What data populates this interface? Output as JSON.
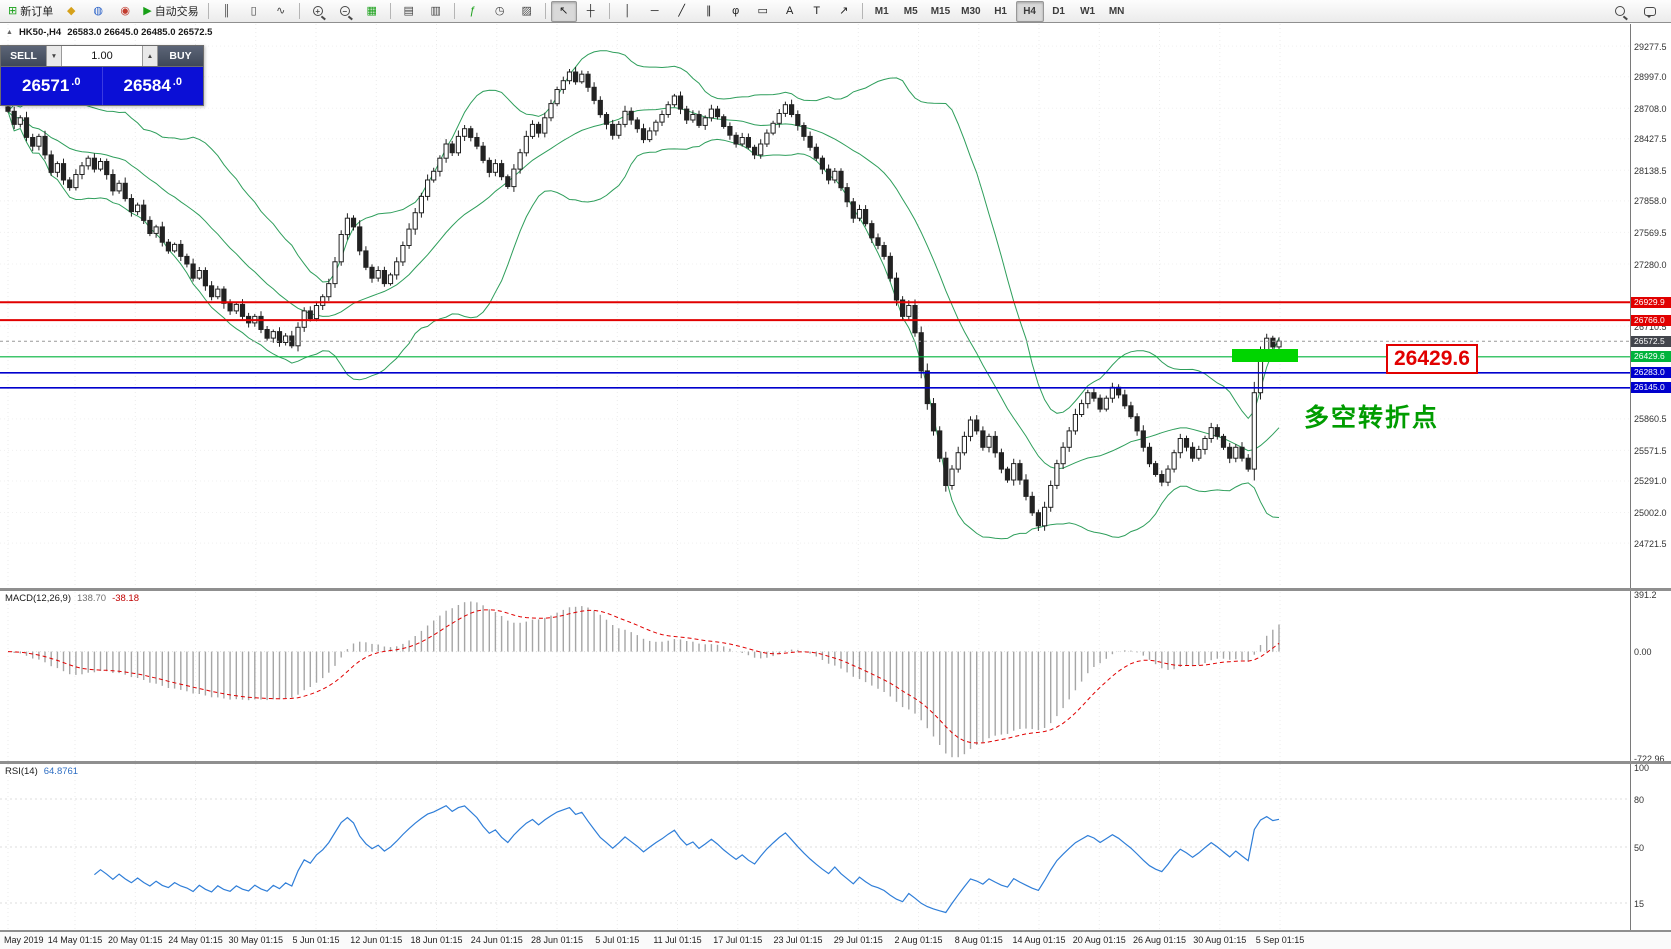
{
  "toolbar": {
    "groups": [
      {
        "items": [
          {
            "name": "new-order-button",
            "glyph": "⊞",
            "color": "#18a018",
            "label": "新订单"
          },
          {
            "name": "charts-bar-icon-button",
            "glyph": "◆",
            "color": "#d6a11a"
          },
          {
            "name": "market-watch-icon-button",
            "glyph": "◍",
            "color": "#2b62c8"
          },
          {
            "name": "data-window-icon-button",
            "glyph": "◉",
            "color": "#c23b2e"
          },
          {
            "name": "autotrading-button",
            "glyph": "▶",
            "color": "#18a018",
            "label": "自动交易"
          }
        ]
      },
      {
        "items": [
          {
            "name": "bar-chart-type-button",
            "glyph": "║",
            "color": "#444444"
          },
          {
            "name": "candlestick-type-button",
            "glyph": "▯",
            "color": "#444444"
          },
          {
            "name": "line-chart-type-button",
            "glyph": "∿",
            "color": "#444444"
          }
        ]
      },
      {
        "items": [
          {
            "name": "zoom-in-button",
            "mag": "+"
          },
          {
            "name": "zoom-out-button",
            "mag": "−"
          },
          {
            "name": "chart-grid-icon-button",
            "glyph": "▦",
            "color": "#18a018"
          }
        ]
      },
      {
        "items": [
          {
            "name": "tile-windows-icon-button",
            "glyph": "▤",
            "color": "#444444"
          },
          {
            "name": "cascade-windows-icon-button",
            "glyph": "▥",
            "color": "#444444"
          }
        ]
      },
      {
        "items": [
          {
            "name": "indicators-icon-button",
            "glyph": "ƒ",
            "color": "#18a018"
          },
          {
            "name": "periods-icon-button",
            "glyph": "◷",
            "color": "#444444"
          },
          {
            "name": "templates-icon-button",
            "glyph": "▨",
            "color": "#444444"
          }
        ]
      },
      {
        "items": [
          {
            "name": "cursor-tool-button",
            "glyph": "↖",
            "color": "#222222",
            "active": true
          },
          {
            "name": "crosshair-tool-button",
            "glyph": "┼",
            "color": "#222222"
          }
        ]
      },
      {
        "items": [
          {
            "name": "vertical-line-tool-button",
            "glyph": "│",
            "color": "#222222"
          },
          {
            "name": "horizontal-line-tool-button",
            "glyph": "─",
            "color": "#222222"
          },
          {
            "name": "trendline-tool-button",
            "glyph": "╱",
            "color": "#222222"
          },
          {
            "name": "channel-tool-button",
            "glyph": "∥",
            "color": "#222222"
          },
          {
            "name": "fibonacci-tool-button",
            "glyph": "φ",
            "color": "#222222"
          },
          {
            "name": "shapes-tool-button",
            "glyph": "▭",
            "color": "#222222"
          },
          {
            "name": "text-tool-button",
            "glyph": "A",
            "color": "#222222"
          },
          {
            "name": "label-tool-button",
            "glyph": "T",
            "color": "#222222"
          },
          {
            "name": "arrows-tool-button",
            "glyph": "↗",
            "color": "#222222"
          }
        ]
      }
    ],
    "timeframes": {
      "items": [
        "M1",
        "M5",
        "M15",
        "M30",
        "H1",
        "H4",
        "D1",
        "W1",
        "MN"
      ],
      "active": "H4"
    },
    "right_items": [
      {
        "name": "search-icon-button",
        "mag": ""
      },
      {
        "name": "chat-icon-button",
        "bubble": true
      }
    ]
  },
  "chart": {
    "info": {
      "icon_glyph": "▲",
      "symbol_period": "HK50-,H4",
      "ohlc": "26583.0 26645.0 26485.0 26572.5"
    },
    "order_panel": {
      "sell_label": "SELL",
      "buy_label": "BUY",
      "volume": "1.00",
      "step_down_glyph": "▼",
      "step_up_glyph": "▲",
      "sell_main": "26571",
      "sell_frac": ".0",
      "buy_main": "26584",
      "buy_frac": ".0"
    },
    "annotations": {
      "turning_point": "多空转折点",
      "callout": "26429.6"
    },
    "hlines": [
      {
        "price": 26929.9,
        "color": "#e10000",
        "lw": 2.0,
        "badge": "26929.9"
      },
      {
        "price": 26766.0,
        "color": "#e10000",
        "lw": 2.0,
        "badge": "26766.0"
      },
      {
        "price": 26429.6,
        "color": "#00b33c",
        "lw": 1.2,
        "badge": "26429.6"
      },
      {
        "price": 26283.0,
        "color": "#0000cd",
        "lw": 1.6,
        "badge": "26283.0"
      },
      {
        "price": 26145.0,
        "color": "#0000cd",
        "lw": 1.6,
        "badge": "26145.0"
      }
    ],
    "current_price": {
      "price": 26572.5,
      "badge": "26572.5",
      "color": "#43464d"
    },
    "price_axis_labels": [
      "29277.5",
      "28997.0",
      "28708.0",
      "28427.5",
      "28138.5",
      "27858.0",
      "27569.5",
      "27280.0",
      "26710.5",
      "25860.5",
      "25571.5",
      "25291.0",
      "25002.0",
      "24721.5"
    ]
  },
  "chart_data": {
    "type": "candlestick",
    "title": "HK50-,H4",
    "y_range": [
      24310,
      29480
    ],
    "closes": [
      28680,
      28560,
      28620,
      28440,
      28360,
      28450,
      28280,
      28120,
      28200,
      28050,
      27980,
      28100,
      28180,
      28250,
      28150,
      28220,
      28100,
      27950,
      28020,
      27880,
      27760,
      27820,
      27680,
      27560,
      27620,
      27480,
      27400,
      27460,
      27350,
      27280,
      27150,
      27220,
      27080,
      26980,
      27050,
      26920,
      26850,
      26910,
      26800,
      26740,
      26800,
      26680,
      26600,
      26660,
      26560,
      26620,
      26530,
      26700,
      26850,
      26780,
      26900,
      26980,
      27100,
      27300,
      27550,
      27700,
      27620,
      27400,
      27250,
      27150,
      27220,
      27100,
      27180,
      27300,
      27450,
      27600,
      27750,
      27900,
      28050,
      28130,
      28250,
      28380,
      28300,
      28450,
      28520,
      28440,
      28360,
      28230,
      28120,
      28200,
      28080,
      27990,
      28150,
      28300,
      28450,
      28560,
      28480,
      28620,
      28750,
      28880,
      28960,
      29040,
      28950,
      29020,
      28900,
      28780,
      28650,
      28560,
      28460,
      28560,
      28680,
      28600,
      28520,
      28420,
      28500,
      28580,
      28650,
      28740,
      28820,
      28700,
      28600,
      28650,
      28550,
      28620,
      28700,
      28630,
      28540,
      28460,
      28380,
      28440,
      28350,
      28280,
      28380,
      28480,
      28570,
      28660,
      28740,
      28650,
      28550,
      28450,
      28350,
      28250,
      28150,
      28050,
      28130,
      27980,
      27850,
      27700,
      27780,
      27650,
      27520,
      27450,
      27350,
      27150,
      26950,
      26800,
      26900,
      26650,
      26300,
      26000,
      25750,
      25500,
      25250,
      25400,
      25550,
      25700,
      25850,
      25750,
      25600,
      25700,
      25550,
      25400,
      25300,
      25450,
      25300,
      25150,
      25000,
      24880,
      25050,
      25250,
      25450,
      25600,
      25750,
      25900,
      26000,
      26100,
      26050,
      25950,
      26050,
      26150,
      26080,
      25980,
      25880,
      25750,
      25600,
      25450,
      25350,
      25280,
      25400,
      25550,
      25680,
      25600,
      25500,
      25580,
      25680,
      25780,
      25700,
      25600,
      25500,
      25600,
      25500,
      25400,
      26100,
      26450,
      26600,
      26520,
      26572.5
    ],
    "indicators": [
      {
        "name": "Bollinger Bands",
        "params": [
          20,
          2
        ],
        "color": "#2e9e5b"
      },
      {
        "name": "MACD",
        "params": [
          12,
          26,
          9
        ],
        "main": 138.7,
        "signal": -38.18,
        "range": [
          -722.96,
          391.2
        ]
      },
      {
        "name": "RSI",
        "params": [
          14
        ],
        "value": 64.8761,
        "range": [
          0,
          100
        ]
      }
    ]
  },
  "macd_panel": {
    "title": "MACD(12,26,9)",
    "main_value": "138.70",
    "signal_value": "-38.18",
    "axis_labels": [
      "391.2",
      "0.00",
      "-722.96"
    ]
  },
  "rsi_panel": {
    "title": "RSI(14)",
    "value": "64.8761",
    "axis_labels": [
      "100",
      "80",
      "50",
      "15"
    ],
    "levels": [
      80,
      50,
      15
    ]
  },
  "date_axis": {
    "labels": [
      "May 2019",
      "14 May 01:15",
      "20 May 01:15",
      "24 May 01:15",
      "30 May 01:15",
      "5 Jun 01:15",
      "12 Jun 01:15",
      "18 Jun 01:15",
      "24 Jun 01:15",
      "28 Jun 01:15",
      "5 Jul 01:15",
      "11 Jul 01:15",
      "17 Jul 01:15",
      "23 Jul 01:15",
      "29 Jul 01:15",
      "2 Aug 01:15",
      "8 Aug 01:15",
      "14 Aug 01:15",
      "20 Aug 01:15",
      "26 Aug 01:15",
      "30 Aug 01:15",
      "5 Sep 01:15"
    ]
  }
}
